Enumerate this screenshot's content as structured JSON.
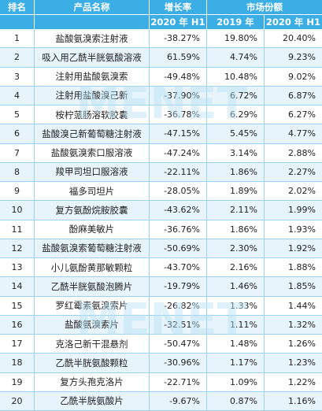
{
  "chart_data": {
    "type": "table",
    "headers": {
      "rank": "排名",
      "name": "产品名称",
      "growth": "增长率",
      "growth_sub": "2020 年 H1",
      "share": "市场份额",
      "share_2019": "2019 年",
      "share_2020": "2020 年 H1"
    },
    "rows": [
      {
        "rank": "1",
        "name": "盐酸氨溴索注射液",
        "growth": "-38.27%",
        "share_2019": "19.80%",
        "share_2020": "20.40%"
      },
      {
        "rank": "2",
        "name": "吸入用乙酰半胱氨酸溶液",
        "growth": "61.59%",
        "share_2019": "4.74%",
        "share_2020": "9.23%"
      },
      {
        "rank": "3",
        "name": "注射用盐酸氨溴索",
        "growth": "-49.48%",
        "share_2019": "10.48%",
        "share_2020": "9.02%"
      },
      {
        "rank": "4",
        "name": "注射用盐酸溴己新",
        "growth": "-37.90%",
        "share_2019": "6.72%",
        "share_2020": "6.87%"
      },
      {
        "rank": "5",
        "name": "桉柠蒎肠溶软胶囊",
        "growth": "-36.78%",
        "share_2019": "6.29%",
        "share_2020": "6.27%"
      },
      {
        "rank": "6",
        "name": "盐酸溴己新葡萄糖注射液",
        "growth": "-47.15%",
        "share_2019": "5.45%",
        "share_2020": "4.77%"
      },
      {
        "rank": "7",
        "name": "盐酸氨溴索口服溶液",
        "growth": "-47.24%",
        "share_2019": "3.14%",
        "share_2020": "2.88%"
      },
      {
        "rank": "8",
        "name": "羧甲司坦口服溶液",
        "growth": "-22.11%",
        "share_2019": "1.86%",
        "share_2020": "2.27%"
      },
      {
        "rank": "9",
        "name": "福多司坦片",
        "growth": "-28.05%",
        "share_2019": "1.89%",
        "share_2020": "2.02%"
      },
      {
        "rank": "10",
        "name": "复方氨酚烷胺胶囊",
        "growth": "-43.62%",
        "share_2019": "2.11%",
        "share_2020": "1.99%"
      },
      {
        "rank": "11",
        "name": "酚麻美敏片",
        "growth": "-36.76%",
        "share_2019": "1.86%",
        "share_2020": "1.93%"
      },
      {
        "rank": "12",
        "name": "盐酸氨溴索葡萄糖注射液",
        "growth": "-50.69%",
        "share_2019": "2.30%",
        "share_2020": "1.92%"
      },
      {
        "rank": "13",
        "name": "小儿氨酚黄那敏颗粒",
        "growth": "-43.70%",
        "share_2019": "2.16%",
        "share_2020": "1.88%"
      },
      {
        "rank": "14",
        "name": "乙酰半胱氨酸泡腾片",
        "growth": "-19.79%",
        "share_2019": "1.46%",
        "share_2020": "1.85%"
      },
      {
        "rank": "15",
        "name": "罗红霉素氨溴索片",
        "growth": "-26.82%",
        "share_2019": "1.33%",
        "share_2020": "1.44%"
      },
      {
        "rank": "16",
        "name": "盐酸氨溴索片",
        "growth": "-32.51%",
        "share_2019": "1.11%",
        "share_2020": "1.32%"
      },
      {
        "rank": "17",
        "name": "克洛己新干混悬剂",
        "growth": "-50.47%",
        "share_2019": "1.48%",
        "share_2020": "1.26%"
      },
      {
        "rank": "18",
        "name": "乙酰半胱氨酸颗粒",
        "growth": "-30.96%",
        "share_2019": "1.17%",
        "share_2020": "1.23%"
      },
      {
        "rank": "19",
        "name": "复方头孢克洛片",
        "growth": "-22.71%",
        "share_2019": "1.09%",
        "share_2020": "1.22%"
      },
      {
        "rank": "20",
        "name": "乙酰半胱氨酸片",
        "growth": "-9.67%",
        "share_2019": "0.87%",
        "share_2020": "1.16%"
      }
    ]
  },
  "watermark": "MENET",
  "colors": {
    "header_bg": "#3aaee5",
    "header_text": "#ffffff",
    "row_stripe": "#e7f4fb",
    "border": "#9bd3ef",
    "watermark": "#b9e0f4"
  }
}
